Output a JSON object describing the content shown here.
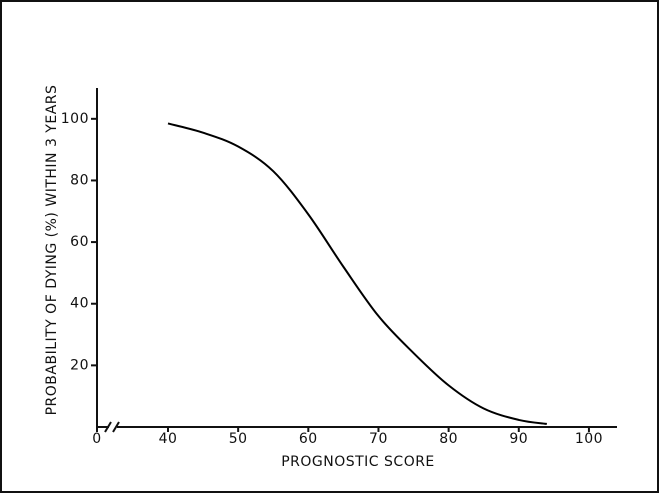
{
  "chart_data": {
    "type": "line",
    "x_label": "PROGNOSTIC SCORE",
    "y_label": "PROBABILITY OF DYING (%) WITHIN 3 YEARS",
    "x": [
      40,
      45,
      50,
      55,
      60,
      65,
      70,
      75,
      80,
      85,
      90,
      94
    ],
    "series": [
      {
        "color": "#000000",
        "values": [
          98.5,
          95.5,
          91,
          83,
          69,
          52,
          36,
          24,
          13.5,
          6,
          2.3,
          1
        ]
      }
    ],
    "xlim": [
      0,
      104
    ],
    "xticks": [
      0,
      40,
      50,
      60,
      70,
      80,
      90,
      100
    ],
    "ylim": [
      0,
      110
    ],
    "yticks": [
      20,
      40,
      60,
      80,
      100
    ],
    "x_axis_break": true,
    "grid": false
  }
}
